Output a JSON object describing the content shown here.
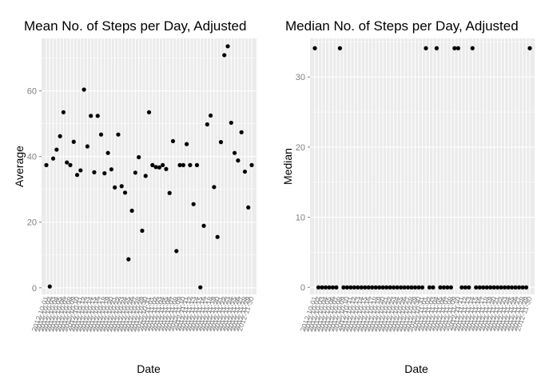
{
  "chart_data": [
    {
      "type": "scatter",
      "title": "Mean No. of Steps per Day, Adjusted",
      "xlabel": "Date",
      "ylabel": "Average",
      "yticks": [
        0,
        20,
        40,
        60
      ],
      "ylim": [
        -2,
        76
      ],
      "x": [
        "2012-10-01",
        "2012-10-02",
        "2012-10-03",
        "2012-10-04",
        "2012-10-05",
        "2012-10-06",
        "2012-10-07",
        "2012-10-08",
        "2012-10-09",
        "2012-10-10",
        "2012-10-11",
        "2012-10-12",
        "2012-10-13",
        "2012-10-14",
        "2012-10-15",
        "2012-10-16",
        "2012-10-17",
        "2012-10-18",
        "2012-10-19",
        "2012-10-20",
        "2012-10-21",
        "2012-10-22",
        "2012-10-23",
        "2012-10-24",
        "2012-10-25",
        "2012-10-26",
        "2012-10-27",
        "2012-10-28",
        "2012-10-29",
        "2012-10-30",
        "2012-10-31",
        "2012-11-01",
        "2012-11-02",
        "2012-11-03",
        "2012-11-04",
        "2012-11-05",
        "2012-11-06",
        "2012-11-07",
        "2012-11-08",
        "2012-11-09",
        "2012-11-10",
        "2012-11-11",
        "2012-11-12",
        "2012-11-13",
        "2012-11-14",
        "2012-11-15",
        "2012-11-16",
        "2012-11-17",
        "2012-11-18",
        "2012-11-19",
        "2012-11-20",
        "2012-11-21",
        "2012-11-22",
        "2012-11-23",
        "2012-11-24",
        "2012-11-25",
        "2012-11-26",
        "2012-11-27",
        "2012-11-28",
        "2012-11-29",
        "2012-11-30"
      ],
      "values": [
        37.4,
        0.4,
        39.4,
        42.1,
        46.2,
        53.5,
        38.2,
        37.4,
        44.5,
        34.4,
        35.8,
        60.4,
        43.1,
        52.4,
        35.2,
        52.4,
        46.7,
        34.9,
        41.1,
        36.1,
        30.6,
        46.7,
        30.97,
        29.0,
        8.7,
        23.5,
        35.1,
        39.8,
        17.4,
        34.1,
        53.5,
        37.4,
        36.8,
        36.7,
        37.4,
        36.2,
        28.9,
        44.7,
        11.2,
        37.4,
        37.4,
        43.8,
        37.4,
        25.5,
        37.4,
        0.14,
        18.9,
        49.8,
        52.5,
        30.7,
        15.5,
        44.4,
        70.9,
        73.6,
        50.3,
        41.1,
        38.8,
        47.4,
        35.4,
        24.5,
        37.4
      ]
    },
    {
      "type": "scatter",
      "title": "Median No. of Steps per Day, Adjusted",
      "xlabel": "Date",
      "ylabel": "Median",
      "yticks": [
        0,
        10,
        20,
        30
      ],
      "ylim": [
        -1,
        35.5
      ],
      "x": [
        "2012-10-01",
        "2012-10-02",
        "2012-10-03",
        "2012-10-04",
        "2012-10-05",
        "2012-10-06",
        "2012-10-07",
        "2012-10-08",
        "2012-10-09",
        "2012-10-10",
        "2012-10-11",
        "2012-10-12",
        "2012-10-13",
        "2012-10-14",
        "2012-10-15",
        "2012-10-16",
        "2012-10-17",
        "2012-10-18",
        "2012-10-19",
        "2012-10-20",
        "2012-10-21",
        "2012-10-22",
        "2012-10-23",
        "2012-10-24",
        "2012-10-25",
        "2012-10-26",
        "2012-10-27",
        "2012-10-28",
        "2012-10-29",
        "2012-10-30",
        "2012-10-31",
        "2012-11-01",
        "2012-11-02",
        "2012-11-03",
        "2012-11-04",
        "2012-11-05",
        "2012-11-06",
        "2012-11-07",
        "2012-11-08",
        "2012-11-09",
        "2012-11-10",
        "2012-11-11",
        "2012-11-12",
        "2012-11-13",
        "2012-11-14",
        "2012-11-15",
        "2012-11-16",
        "2012-11-17",
        "2012-11-18",
        "2012-11-19",
        "2012-11-20",
        "2012-11-21",
        "2012-11-22",
        "2012-11-23",
        "2012-11-24",
        "2012-11-25",
        "2012-11-26",
        "2012-11-27",
        "2012-11-28",
        "2012-11-29",
        "2012-11-30"
      ],
      "values": [
        34.1,
        0,
        0,
        0,
        0,
        0,
        0,
        34.1,
        0,
        0,
        0,
        0,
        0,
        0,
        0,
        0,
        0,
        0,
        0,
        0,
        0,
        0,
        0,
        0,
        0,
        0,
        0,
        0,
        0,
        0,
        0,
        34.1,
        0,
        0,
        34.1,
        0,
        0,
        0,
        0,
        34.1,
        34.1,
        0,
        0,
        0,
        34.1,
        0,
        0,
        0,
        0,
        0,
        0,
        0,
        0,
        0,
        0,
        0,
        0,
        0,
        0,
        0,
        34.1
      ]
    }
  ]
}
